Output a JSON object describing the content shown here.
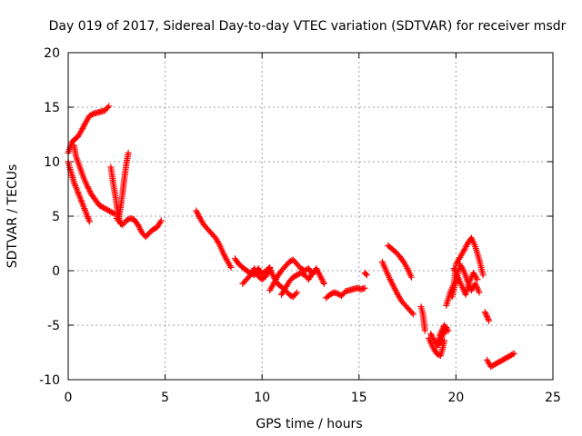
{
  "chart_data": {
    "type": "scatter",
    "title": "Day 019 of 2017, Sidereal Day-to-day VTEC variation (SDTVAR) for receiver msdr",
    "xlabel": "GPS time / hours",
    "ylabel": "SDTVAR / TECUs",
    "xlim": [
      0,
      25
    ],
    "ylim": [
      -10,
      20
    ],
    "x_ticks": [
      "0",
      "5",
      "10",
      "15",
      "20",
      "25"
    ],
    "y_ticks": [
      "-10",
      "-5",
      "0",
      "5",
      "10",
      "15",
      "20"
    ],
    "grid": true,
    "marker": "+",
    "color": "#ff0000",
    "segments": [
      {
        "x": [
          0.0,
          0.1,
          0.2,
          0.3,
          0.5,
          0.7,
          0.9,
          1.1,
          1.3,
          1.5,
          1.7,
          1.9,
          2.1
        ],
        "y": [
          10.8,
          11.3,
          11.8,
          12.0,
          12.3,
          12.9,
          13.6,
          14.2,
          14.4,
          14.5,
          14.6,
          14.7,
          15.1
        ]
      },
      {
        "x": [
          0.0,
          0.1,
          0.2,
          0.3,
          0.5,
          0.7,
          0.9,
          1.1
        ],
        "y": [
          10.0,
          9.3,
          8.7,
          8.1,
          7.2,
          6.3,
          5.4,
          4.5
        ]
      },
      {
        "x": [
          0.3,
          0.4,
          0.6,
          0.8,
          1.0,
          1.2,
          1.4,
          1.6,
          1.8,
          2.0,
          2.2,
          2.4
        ],
        "y": [
          11.5,
          10.5,
          9.5,
          8.5,
          7.7,
          7.0,
          6.5,
          6.0,
          5.8,
          5.6,
          5.4,
          5.2
        ]
      },
      {
        "x": [
          2.2,
          2.3,
          2.4,
          2.5,
          2.6,
          2.7
        ],
        "y": [
          9.5,
          8.3,
          7.2,
          6.0,
          5.0,
          4.3
        ]
      },
      {
        "x": [
          2.6,
          2.7,
          2.8,
          2.9,
          3.0,
          3.1
        ],
        "y": [
          4.8,
          5.8,
          7.0,
          8.5,
          9.8,
          10.8
        ]
      },
      {
        "x": [
          2.5,
          2.8,
          3.0,
          3.2,
          3.4,
          3.6,
          3.8,
          4.0,
          4.2,
          4.4,
          4.6,
          4.8
        ],
        "y": [
          4.8,
          4.2,
          4.6,
          4.8,
          4.7,
          4.2,
          3.5,
          3.1,
          3.5,
          3.8,
          4.0,
          4.6
        ]
      },
      {
        "x": [
          6.6,
          6.8,
          7.0,
          7.2,
          7.4,
          7.6,
          7.8,
          8.0,
          8.2,
          8.4
        ],
        "y": [
          5.5,
          4.8,
          4.2,
          3.8,
          3.4,
          3.0,
          2.4,
          1.6,
          0.9,
          0.3
        ]
      },
      {
        "x": [
          8.6,
          8.8,
          9.0,
          9.2,
          9.4,
          9.6,
          9.8,
          10.0,
          10.2,
          10.4
        ],
        "y": [
          1.1,
          0.6,
          0.3,
          0.0,
          -0.2,
          -0.4,
          0.2,
          -0.3,
          0.0,
          0.3
        ]
      },
      {
        "x": [
          9.0,
          9.2,
          9.4,
          9.6,
          9.8,
          10.0,
          10.2,
          10.4,
          10.6,
          10.8,
          11.0,
          11.2,
          11.4,
          11.6,
          11.8
        ],
        "y": [
          -1.2,
          -0.8,
          -0.4,
          0.2,
          -0.5,
          -0.8,
          -0.5,
          0.2,
          -0.6,
          -1.2,
          -1.5,
          -1.8,
          -2.2,
          -2.4,
          -2.0
        ]
      },
      {
        "x": [
          10.4,
          10.6,
          10.8,
          11.0,
          11.2,
          11.4,
          11.6,
          11.8,
          12.0,
          12.2,
          12.4,
          12.6,
          12.8,
          13.0,
          13.2
        ],
        "y": [
          -1.8,
          -1.2,
          -0.5,
          0.0,
          0.4,
          0.8,
          1.0,
          0.6,
          0.2,
          0.0,
          0.2,
          -0.3,
          0.2,
          -0.5,
          -1.2
        ]
      },
      {
        "x": [
          11.0,
          11.2,
          11.4,
          11.6,
          11.8,
          12.0,
          12.2,
          12.4,
          12.6,
          12.8
        ],
        "y": [
          -2.2,
          -1.6,
          -1.0,
          -0.6,
          -0.4,
          -0.2,
          -0.4,
          -0.8,
          -0.2,
          0.0
        ]
      },
      {
        "x": [
          13.3,
          13.5,
          13.7,
          13.9,
          14.1,
          14.3,
          14.5,
          14.7,
          14.9,
          15.1,
          15.3
        ],
        "y": [
          -2.5,
          -2.2,
          -2.0,
          -2.1,
          -2.3,
          -1.9,
          -1.8,
          -1.7,
          -1.6,
          -1.7,
          -1.6
        ]
      },
      {
        "x": [
          15.3,
          15.4
        ],
        "y": [
          -0.2,
          -0.4
        ]
      },
      {
        "x": [
          16.2,
          16.4,
          16.6,
          16.8,
          17.0,
          17.2,
          17.4,
          17.6,
          17.8
        ],
        "y": [
          0.8,
          0.0,
          -0.8,
          -1.5,
          -2.2,
          -2.8,
          -3.2,
          -3.6,
          -4.0
        ]
      },
      {
        "x": [
          16.5,
          16.7,
          16.9,
          17.1,
          17.3,
          17.5,
          17.7
        ],
        "y": [
          2.3,
          2.0,
          1.7,
          1.3,
          0.8,
          0.2,
          -0.6
        ]
      },
      {
        "x": [
          18.2,
          18.3,
          18.4
        ],
        "y": [
          -3.3,
          -4.0,
          -5.5
        ]
      },
      {
        "x": [
          18.6,
          18.8,
          19.0,
          19.2,
          19.3,
          19.4
        ],
        "y": [
          -6.2,
          -7.0,
          -7.6,
          -7.8,
          -7.2,
          -6.4
        ]
      },
      {
        "x": [
          18.7,
          18.9,
          19.1,
          19.3,
          19.5,
          19.6
        ],
        "y": [
          -5.8,
          -6.5,
          -6.8,
          -6.0,
          -5.2,
          -5.5
        ]
      },
      {
        "x": [
          19.0,
          19.1,
          19.2,
          19.3,
          19.4,
          19.5
        ],
        "y": [
          -7.0,
          -6.4,
          -5.8,
          -5.4,
          -5.0,
          -5.6
        ]
      },
      {
        "x": [
          19.5,
          19.7,
          19.9,
          20.0,
          20.2,
          20.4,
          20.6,
          20.8,
          21.0,
          21.2,
          21.4
        ],
        "y": [
          -3.2,
          -2.0,
          -1.2,
          0.6,
          1.2,
          1.8,
          2.5,
          3.0,
          2.2,
          1.0,
          -0.4
        ]
      },
      {
        "x": [
          19.8,
          20.0,
          20.2,
          20.4,
          20.6,
          20.8,
          21.0,
          21.2
        ],
        "y": [
          -2.4,
          -1.0,
          0.6,
          0.0,
          -1.0,
          -1.8,
          -1.2,
          -2.0
        ]
      },
      {
        "x": [
          19.9,
          20.1,
          20.3,
          20.5,
          20.7,
          20.9,
          21.1
        ],
        "y": [
          0.2,
          -0.6,
          -1.4,
          -2.2,
          -1.0,
          -0.2,
          -0.8
        ]
      },
      {
        "x": [
          21.5,
          21.6,
          21.7
        ],
        "y": [
          -3.8,
          -4.2,
          -4.6
        ]
      },
      {
        "x": [
          21.6,
          21.8,
          22.0,
          22.2,
          22.4,
          22.6,
          22.8,
          23.0
        ],
        "y": [
          -8.2,
          -8.8,
          -8.6,
          -8.4,
          -8.2,
          -8.0,
          -7.8,
          -7.6
        ]
      }
    ]
  }
}
